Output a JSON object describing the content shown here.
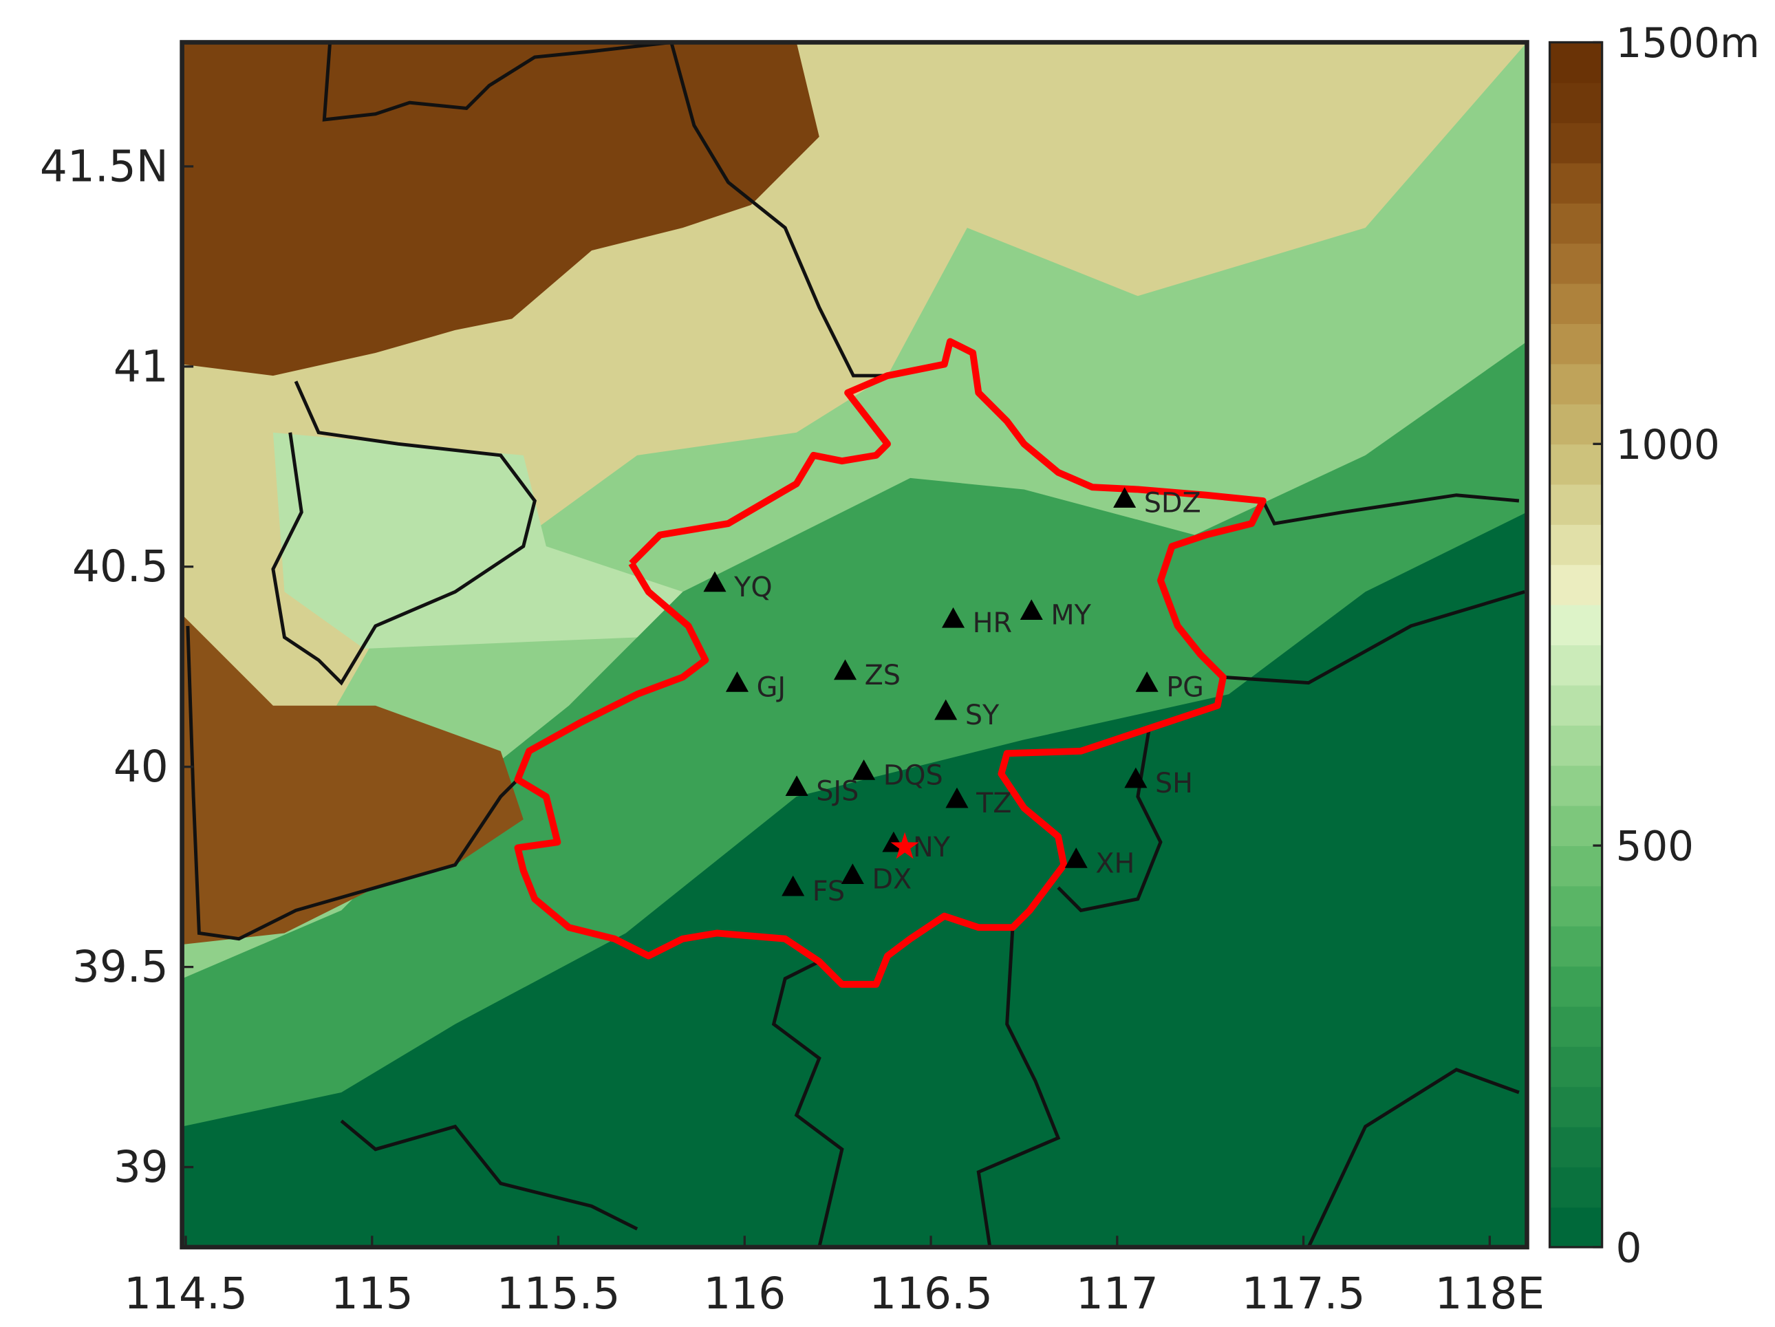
{
  "x_axis": {
    "lim": [
      114.49,
      118.1
    ],
    "ticks": [
      114.5,
      115,
      115.5,
      116,
      116.5,
      117,
      117.5,
      {
        "value": 118,
        "label": "118E"
      }
    ]
  },
  "y_axis": {
    "lim": [
      38.8,
      41.81
    ],
    "ticks": [
      39,
      39.5,
      40,
      40.5,
      41,
      {
        "value": 41.5,
        "label": "41.5N"
      }
    ]
  },
  "colorbar": {
    "lim": [
      0,
      1500
    ],
    "ticks": [
      0,
      500,
      1000,
      {
        "value": 1500,
        "label": "1500m"
      }
    ],
    "colors": [
      "#00693a",
      "#0a723e",
      "#137a42",
      "#1d8446",
      "#268d4a",
      "#30974f",
      "#3ba155",
      "#4aab5d",
      "#5ab566",
      "#6bbe70",
      "#7dc77c",
      "#90d08a",
      "#a4d999",
      "#b8e2a9",
      "#cbebb9",
      "#ddf3c8",
      "#ebedbf",
      "#e1e0a8",
      "#d6d191",
      "#cdc27c",
      "#c5b26a",
      "#bfa35a",
      "#b7924a",
      "#ae823c",
      "#a3712f",
      "#976223",
      "#8a5218",
      "#7a420f",
      "#70390a",
      "#6a3306"
    ]
  },
  "stations": [
    {
      "name": "YQ",
      "lon": 115.92,
      "lat": 40.46
    },
    {
      "name": "HR",
      "lon": 116.56,
      "lat": 40.37
    },
    {
      "name": "MY",
      "lon": 116.77,
      "lat": 40.39
    },
    {
      "name": "SDZ",
      "lon": 117.02,
      "lat": 40.67
    },
    {
      "name": "GJ",
      "lon": 115.98,
      "lat": 40.21
    },
    {
      "name": "ZS",
      "lon": 116.27,
      "lat": 40.24
    },
    {
      "name": "PG",
      "lon": 117.08,
      "lat": 40.21
    },
    {
      "name": "SY",
      "lon": 116.54,
      "lat": 40.14
    },
    {
      "name": "SJS",
      "lon": 116.14,
      "lat": 39.95
    },
    {
      "name": "DQS",
      "lon": 116.32,
      "lat": 39.99
    },
    {
      "name": "TZ",
      "lon": 116.57,
      "lat": 39.92
    },
    {
      "name": "SH",
      "lon": 117.05,
      "lat": 39.97
    },
    {
      "name": "NY",
      "lon": 116.4,
      "lat": 39.81
    },
    {
      "name": "XH",
      "lon": 116.89,
      "lat": 39.77
    },
    {
      "name": "FS",
      "lon": 116.13,
      "lat": 39.7
    },
    {
      "name": "DX",
      "lon": 116.29,
      "lat": 39.73
    }
  ],
  "star": {
    "lon": 116.43,
    "lat": 39.8,
    "color": "#ff0000"
  }
}
